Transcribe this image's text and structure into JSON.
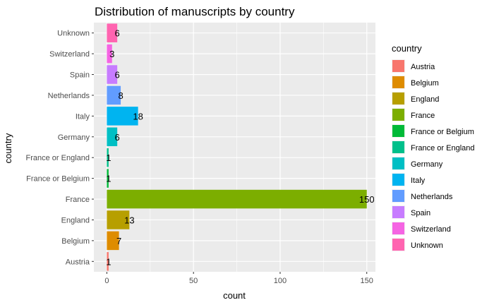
{
  "chart_data": {
    "type": "bar",
    "orientation": "horizontal",
    "title": "Distribution of manuscripts by country",
    "xlabel": "count",
    "ylabel": "country",
    "xlim": [
      0,
      155
    ],
    "x_ticks": [
      0,
      50,
      100,
      150
    ],
    "grid": true,
    "legend_title": "country",
    "legend_position": "right",
    "categories": [
      "Austria",
      "Belgium",
      "England",
      "France",
      "France or Belgium",
      "France or England",
      "Germany",
      "Italy",
      "Netherlands",
      "Spain",
      "Switzerland",
      "Unknown"
    ],
    "values": [
      1,
      7,
      13,
      150,
      1,
      1,
      6,
      18,
      8,
      6,
      3,
      6
    ],
    "colors": [
      "#F8766D",
      "#DE8C00",
      "#B79F00",
      "#7CAE00",
      "#00BA38",
      "#00C08B",
      "#00BFC4",
      "#00B4F0",
      "#619CFF",
      "#C77CFF",
      "#F564E3",
      "#FF64B0"
    ],
    "panel_background": "#EBEBEB",
    "grid_color": "#FFFFFF"
  }
}
